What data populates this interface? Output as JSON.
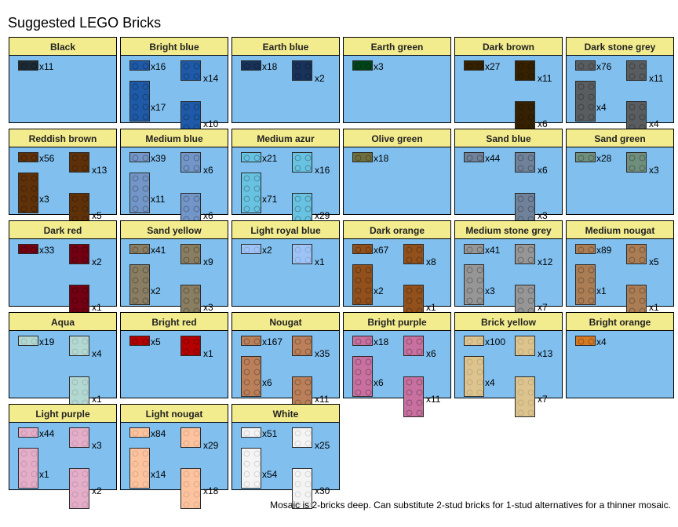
{
  "title": "Suggested LEGO Bricks",
  "footer_note": "Mosaic is 2-bricks deep. Can substitute 2-stud bricks for 1-stud alternatives for a thinner mosaic.",
  "colors": [
    {
      "name": "Black",
      "hex": "#1b2a34",
      "counts": [
        "x11",
        null,
        null,
        null
      ]
    },
    {
      "name": "Bright blue",
      "hex": "#1e5aa8",
      "counts": [
        "x16",
        "x14",
        "x17",
        "x10"
      ]
    },
    {
      "name": "Earth blue",
      "hex": "#19325a",
      "counts": [
        "x18",
        "x2",
        null,
        null
      ]
    },
    {
      "name": "Earth green",
      "hex": "#00451a",
      "counts": [
        "x3",
        null,
        null,
        null
      ]
    },
    {
      "name": "Dark brown",
      "hex": "#352100",
      "counts": [
        "x27",
        "x11",
        null,
        "x6"
      ]
    },
    {
      "name": "Dark stone grey",
      "hex": "#595d60",
      "counts": [
        "x76",
        "x11",
        "x4",
        "x4"
      ]
    },
    {
      "name": "Reddish brown",
      "hex": "#5f3109",
      "counts": [
        "x56",
        "x13",
        "x3",
        "x5"
      ]
    },
    {
      "name": "Medium blue",
      "hex": "#7396c8",
      "counts": [
        "x39",
        "x6",
        "x11",
        "x6"
      ]
    },
    {
      "name": "Medium azur",
      "hex": "#68c3e2",
      "counts": [
        "x21",
        "x16",
        "x71",
        "x29"
      ]
    },
    {
      "name": "Olive green",
      "hex": "#6e6e3c",
      "counts": [
        "x18",
        null,
        null,
        null
      ]
    },
    {
      "name": "Sand blue",
      "hex": "#70819a",
      "counts": [
        "x44",
        "x6",
        null,
        "x3"
      ]
    },
    {
      "name": "Sand green",
      "hex": "#708e7c",
      "counts": [
        "x28",
        "x3",
        null,
        null
      ]
    },
    {
      "name": "Dark red",
      "hex": "#720012",
      "counts": [
        "x33",
        "x2",
        null,
        "x1"
      ]
    },
    {
      "name": "Sand yellow",
      "hex": "#897d62",
      "counts": [
        "x41",
        "x9",
        "x2",
        "x3"
      ]
    },
    {
      "name": "Light royal blue",
      "hex": "#9dc3f7",
      "counts": [
        "x2",
        "x1",
        null,
        null
      ]
    },
    {
      "name": "Dark orange",
      "hex": "#91501c",
      "counts": [
        "x67",
        "x8",
        "x2",
        "x1"
      ]
    },
    {
      "name": "Medium stone grey",
      "hex": "#969696",
      "counts": [
        "x41",
        "x12",
        "x3",
        "x7"
      ]
    },
    {
      "name": "Medium nougat",
      "hex": "#aa7d55",
      "counts": [
        "x89",
        "x5",
        "x1",
        "x1"
      ]
    },
    {
      "name": "Aqua",
      "hex": "#b3d7d1",
      "counts": [
        "x19",
        "x4",
        null,
        "x1"
      ]
    },
    {
      "name": "Bright red",
      "hex": "#b40000",
      "counts": [
        "x5",
        "x1",
        null,
        null
      ]
    },
    {
      "name": "Nougat",
      "hex": "#bb805a",
      "counts": [
        "x167",
        "x35",
        "x6",
        "x11"
      ]
    },
    {
      "name": "Bright purple",
      "hex": "#c870a0",
      "counts": [
        "x18",
        "x6",
        "x6",
        "x11"
      ]
    },
    {
      "name": "Brick yellow",
      "hex": "#ddc48e",
      "counts": [
        "x100",
        "x13",
        "x4",
        "x7"
      ]
    },
    {
      "name": "Bright orange",
      "hex": "#d67923",
      "counts": [
        "x4",
        null,
        null,
        null
      ]
    },
    {
      "name": "Light purple",
      "hex": "#e4adc8",
      "counts": [
        "x44",
        "x3",
        "x1",
        "x2"
      ]
    },
    {
      "name": "Light nougat",
      "hex": "#fcc39e",
      "counts": [
        "x84",
        "x29",
        "x14",
        "x18"
      ]
    },
    {
      "name": "White",
      "hex": "#f4f4f4",
      "counts": [
        "x51",
        "x25",
        "x54",
        "x30"
      ]
    }
  ]
}
